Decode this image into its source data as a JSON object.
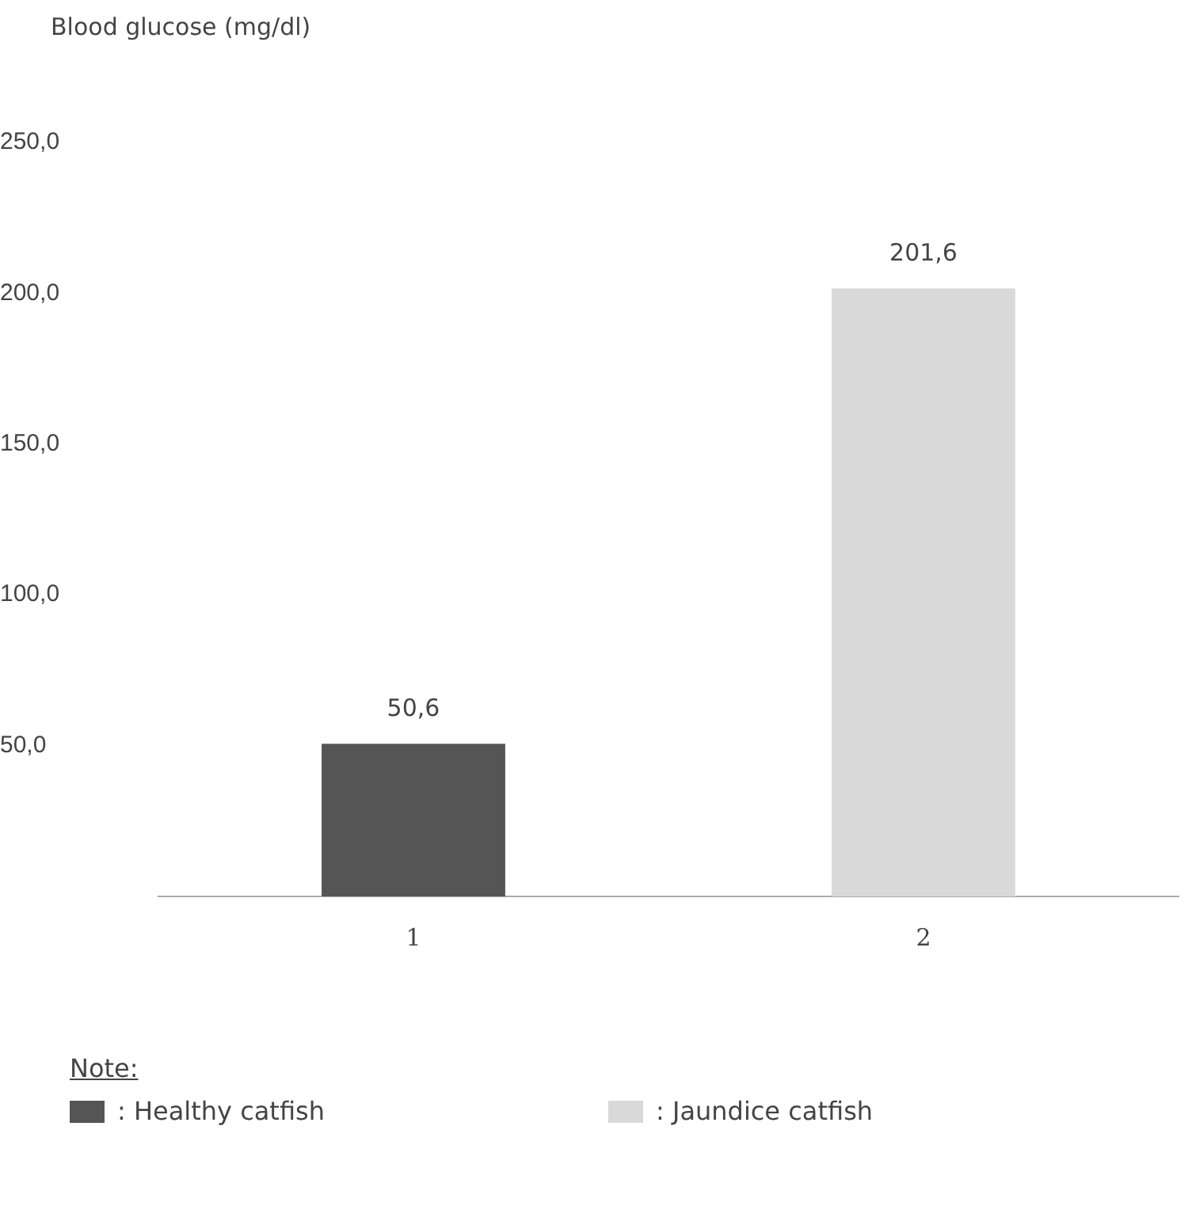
{
  "chart_data": {
    "type": "bar",
    "ylabel": "Blood glucose (mg/dl)",
    "legend_title": "Note:",
    "legend": "bottom left",
    "categories": [
      "1",
      "2"
    ],
    "series": [
      {
        "name": ": Healthy catfish",
        "color": "#555555",
        "values": [
          50.6,
          null
        ],
        "value_labels": [
          "50,6",
          null
        ]
      },
      {
        "name": ": Jaundice catfish",
        "color": "#d9d9d9",
        "values": [
          null,
          201.6
        ],
        "value_labels": [
          null,
          "201,6"
        ]
      }
    ],
    "ylim": [
      0,
      250
    ],
    "yticks": [
      {
        "value": 0,
        "label": null
      },
      {
        "value": 50,
        "label": "50,0"
      },
      {
        "value": 100,
        "label": "100,0"
      },
      {
        "value": 150,
        "label": "150,0"
      },
      {
        "value": 200,
        "label": "200,0"
      },
      {
        "value": 250,
        "label": "250,0"
      }
    ],
    "grid": false
  }
}
